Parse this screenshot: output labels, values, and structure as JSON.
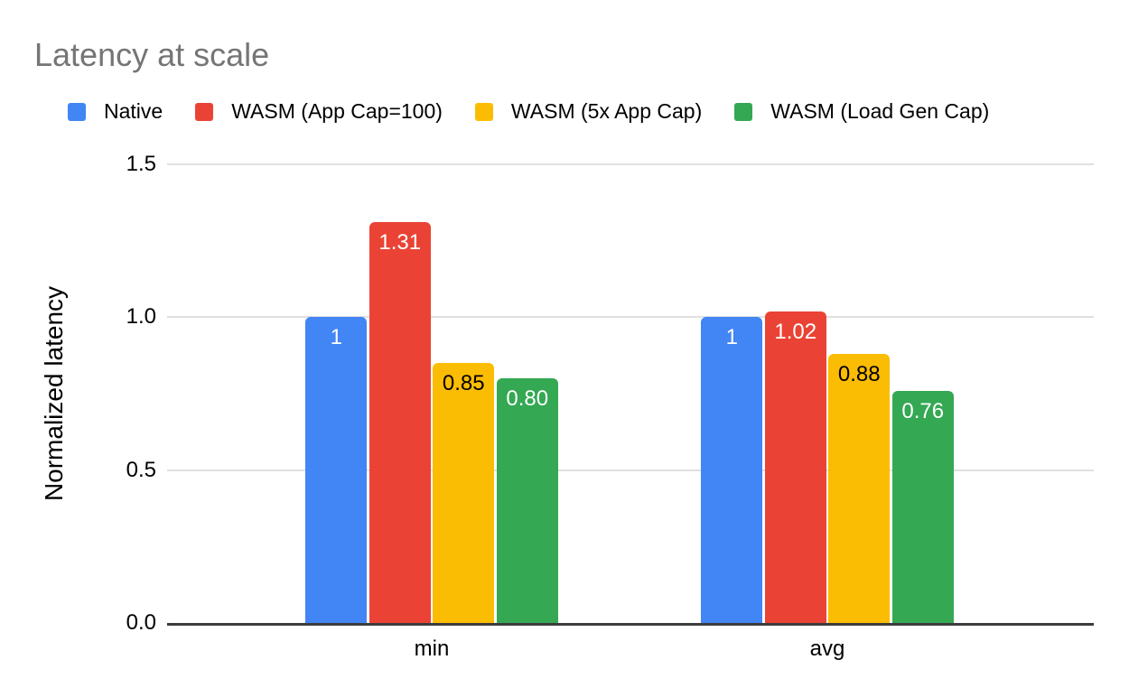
{
  "title": "Latency at scale",
  "axes": {
    "y_title": "Normalized latency",
    "y_ticks": [
      "0.0",
      "0.5",
      "1.0",
      "1.5"
    ],
    "x_categories": [
      "min",
      "avg"
    ]
  },
  "colors": {
    "background": "#ffffff",
    "title_text": "#757575",
    "gridline": "#e0e0e0",
    "baseline": "#3c3c3c",
    "axis_text": "#000000"
  },
  "chart_data": {
    "type": "bar",
    "title": "Latency at scale",
    "xlabel": "",
    "ylabel": "Normalized latency",
    "ylim": [
      0,
      1.5
    ],
    "yticks": [
      "0.0",
      "0.5",
      "1.0",
      "1.5"
    ],
    "grid": true,
    "legend_position": "top",
    "categories": [
      "min",
      "avg"
    ],
    "series": [
      {
        "name": "Native",
        "color": "#4285F4",
        "values": [
          1,
          1
        ],
        "labels": [
          "1",
          "1"
        ],
        "label_color": "#ffffff"
      },
      {
        "name": "WASM (App Cap=100)",
        "color": "#EA4335",
        "values": [
          1.31,
          1.02
        ],
        "labels": [
          "1.31",
          "1.02"
        ],
        "label_color": "#ffffff"
      },
      {
        "name": "WASM (5x App Cap)",
        "color": "#FBBC04",
        "values": [
          0.85,
          0.88
        ],
        "labels": [
          "0.85",
          "0.88"
        ],
        "label_color": "#000000"
      },
      {
        "name": "WASM (Load Gen Cap)",
        "color": "#34A853",
        "values": [
          0.8,
          0.76
        ],
        "labels": [
          "0.80",
          "0.76"
        ],
        "label_color": "#ffffff"
      }
    ]
  }
}
